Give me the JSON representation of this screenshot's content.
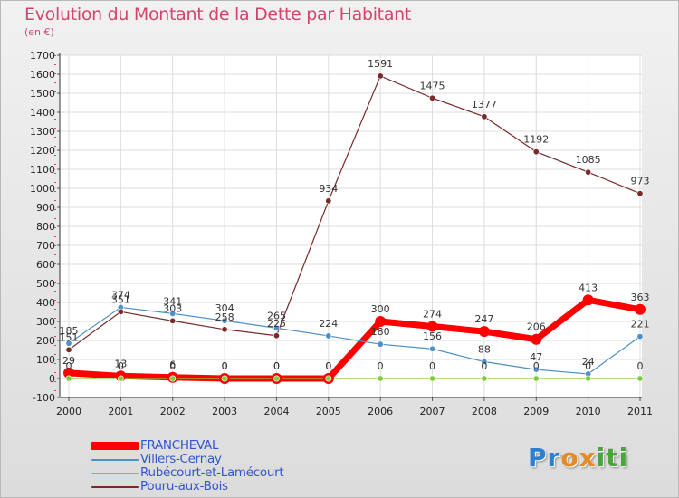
{
  "chart_data": {
    "type": "line",
    "title": "Evolution du Montant de la Dette par Habitant",
    "subtitle": "(en €)",
    "x": [
      "2000",
      "2001",
      "2002",
      "2003",
      "2004",
      "2005",
      "2006",
      "2007",
      "2008",
      "2009",
      "2010",
      "2011"
    ],
    "ylim": [
      -100,
      1700
    ],
    "yticks": [
      -100,
      0,
      100,
      200,
      300,
      400,
      500,
      600,
      700,
      800,
      900,
      1000,
      1100,
      1200,
      1300,
      1400,
      1500,
      1600,
      1700
    ],
    "grid": true,
    "legend_position": "bottom-left",
    "series": [
      {
        "name": "FRANCHEVAL",
        "color": "#ff0000",
        "values": [
          29,
          13,
          6,
          0,
          0,
          0,
          300,
          274,
          247,
          206,
          413,
          363
        ]
      },
      {
        "name": "Villers-Cernay",
        "color": "#4d8fc7",
        "values": [
          185,
          374,
          341,
          304,
          265,
          224,
          180,
          156,
          88,
          47,
          24,
          221
        ]
      },
      {
        "name": "Rubécourt-et-Lamécourt",
        "color": "#7ccf38",
        "values": [
          0,
          0,
          0,
          0,
          0,
          0,
          0,
          0,
          0,
          0,
          0,
          0
        ]
      },
      {
        "name": "Pouru-aux-Bois",
        "color": "#7a2a2a",
        "values": [
          151,
          351,
          303,
          258,
          225,
          934,
          1591,
          1475,
          1377,
          1192,
          1085,
          973
        ]
      }
    ]
  },
  "logo_text": "Proxiti"
}
